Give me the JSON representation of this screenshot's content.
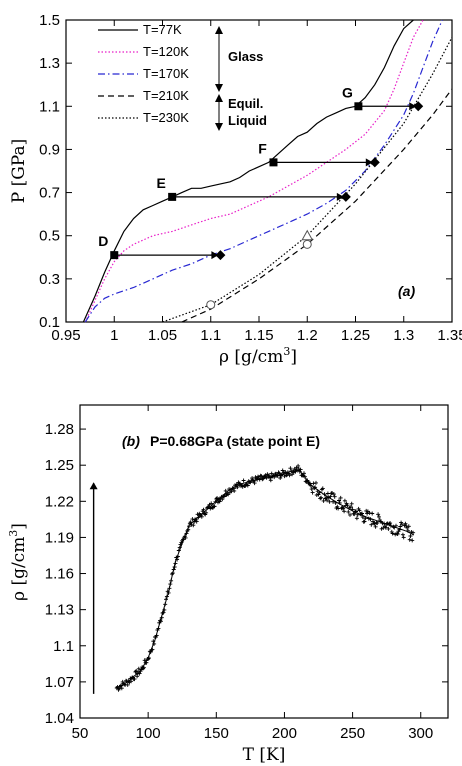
{
  "chart_data": [
    {
      "type": "line",
      "panel_label": "(a)",
      "xlabel_main": "ρ [g/cm",
      "xlabel_sup": "3",
      "xlabel_end": "]",
      "ylabel": "P [GPa]",
      "xlim": [
        0.95,
        1.35
      ],
      "ylim": [
        0.1,
        1.5
      ],
      "x_ticks": [
        "0.95",
        "1",
        "1.05",
        "1.1",
        "1.15",
        "1.2",
        "1.25",
        "1.3",
        "1.35"
      ],
      "x_tick_values": [
        0.95,
        1.0,
        1.05,
        1.1,
        1.15,
        1.2,
        1.25,
        1.3,
        1.35
      ],
      "y_ticks": [
        "0.1",
        "0.3",
        "0.5",
        "0.7",
        "0.9",
        "1.1",
        "1.3",
        "1.5"
      ],
      "y_tick_values": [
        0.1,
        0.3,
        0.5,
        0.7,
        0.9,
        1.1,
        1.3,
        1.5
      ],
      "legend": {
        "placement": "top-left",
        "group_glass": "Glass",
        "group_liquid_1": "Equil.",
        "group_liquid_2": "Liquid"
      },
      "series": [
        {
          "name": "T=77K",
          "color": "#000000",
          "dash": "solid",
          "x": [
            0.968,
            0.98,
            0.99,
            1.0,
            1.01,
            1.02,
            1.03,
            1.04,
            1.05,
            1.06,
            1.07,
            1.08,
            1.09,
            1.1,
            1.11,
            1.12,
            1.13,
            1.14,
            1.15,
            1.16,
            1.17,
            1.18,
            1.19,
            1.2,
            1.21,
            1.22,
            1.23,
            1.24,
            1.25,
            1.26,
            1.27,
            1.28,
            1.29,
            1.3,
            1.31
          ],
          "y": [
            0.1,
            0.22,
            0.33,
            0.43,
            0.52,
            0.58,
            0.62,
            0.64,
            0.66,
            0.68,
            0.7,
            0.72,
            0.72,
            0.73,
            0.74,
            0.75,
            0.77,
            0.8,
            0.82,
            0.84,
            0.88,
            0.92,
            0.96,
            0.98,
            1.02,
            1.05,
            1.07,
            1.09,
            1.1,
            1.14,
            1.2,
            1.28,
            1.38,
            1.46,
            1.5
          ]
        },
        {
          "name": "T=120K",
          "color": "#e81ec8",
          "dash": "dotted",
          "x": [
            0.97,
            0.98,
            0.99,
            1.0,
            1.01,
            1.02,
            1.04,
            1.06,
            1.08,
            1.1,
            1.12,
            1.14,
            1.16,
            1.18,
            1.2,
            1.22,
            1.24,
            1.26,
            1.28,
            1.29,
            1.3,
            1.31,
            1.32
          ],
          "y": [
            0.1,
            0.2,
            0.3,
            0.38,
            0.43,
            0.46,
            0.5,
            0.52,
            0.55,
            0.58,
            0.6,
            0.64,
            0.68,
            0.73,
            0.78,
            0.84,
            0.9,
            0.97,
            1.08,
            1.18,
            1.3,
            1.42,
            1.5
          ]
        },
        {
          "name": "T=170K",
          "color": "#2828d2",
          "dash": "dashdot",
          "x": [
            0.97,
            0.98,
            0.99,
            1.0,
            1.02,
            1.04,
            1.06,
            1.08,
            1.1,
            1.12,
            1.14,
            1.16,
            1.18,
            1.2,
            1.22,
            1.24,
            1.26,
            1.28,
            1.3,
            1.31,
            1.32,
            1.33,
            1.34
          ],
          "y": [
            0.1,
            0.17,
            0.21,
            0.23,
            0.26,
            0.3,
            0.34,
            0.37,
            0.41,
            0.44,
            0.48,
            0.52,
            0.56,
            0.6,
            0.65,
            0.71,
            0.8,
            0.92,
            1.06,
            1.16,
            1.28,
            1.4,
            1.5
          ]
        },
        {
          "name": "T=210K",
          "color": "#000000",
          "dash": "dashed",
          "x": [
            1.07,
            1.1,
            1.15,
            1.2,
            1.25,
            1.3,
            1.33,
            1.35
          ],
          "y": [
            0.1,
            0.16,
            0.3,
            0.46,
            0.66,
            0.9,
            1.06,
            1.18
          ]
        },
        {
          "name": "T=230K",
          "color": "#000000",
          "dash": "dotted",
          "x": [
            1.05,
            1.1,
            1.15,
            1.2,
            1.25,
            1.3,
            1.33,
            1.35
          ],
          "y": [
            0.1,
            0.18,
            0.32,
            0.5,
            0.74,
            1.02,
            1.25,
            1.42
          ]
        }
      ],
      "state_points": [
        {
          "label": "D",
          "x": 1.0,
          "y": 0.41,
          "x_end": 1.11
        },
        {
          "label": "E",
          "x": 1.06,
          "y": 0.68,
          "x_end": 1.24
        },
        {
          "label": "F",
          "x": 1.165,
          "y": 0.84,
          "x_end": 1.27
        },
        {
          "label": "G",
          "x": 1.253,
          "y": 1.1,
          "x_end": 1.315
        }
      ],
      "open_markers": [
        {
          "shape": "circle",
          "x": 1.1,
          "y": 0.18
        },
        {
          "shape": "circle",
          "x": 1.2,
          "y": 0.46
        },
        {
          "shape": "triangle",
          "x": 1.2,
          "y": 0.5
        }
      ]
    },
    {
      "type": "scatter",
      "panel_label": "(b)",
      "title": "P=0.68GPa (state point E)",
      "xlabel": "T [K]",
      "ylabel_main": "ρ [g/cm",
      "ylabel_sup": "3",
      "ylabel_end": "]",
      "xlim": [
        50,
        320
      ],
      "ylim": [
        1.04,
        1.3
      ],
      "x_ticks": [
        "50",
        "100",
        "150",
        "200",
        "250",
        "300"
      ],
      "x_tick_values": [
        50,
        100,
        150,
        200,
        250,
        300
      ],
      "y_ticks": [
        "1.04",
        "1.07",
        "1.1",
        "1.13",
        "1.16",
        "1.19",
        "1.22",
        "1.25",
        "1.28"
      ],
      "y_tick_values": [
        1.04,
        1.07,
        1.1,
        1.13,
        1.16,
        1.19,
        1.22,
        1.25,
        1.28
      ],
      "arrow": {
        "x": 60,
        "y_from": 1.06,
        "y_to": 1.235
      },
      "series": [
        {
          "name": "",
          "color": "#000000",
          "x": [
            77,
            85,
            95,
            100,
            105,
            110,
            115,
            120,
            125,
            130,
            140,
            150,
            160,
            170,
            180,
            190,
            200,
            205,
            210,
            215,
            220,
            230,
            240,
            250,
            260,
            270,
            280,
            290,
            295
          ],
          "y": [
            1.065,
            1.07,
            1.08,
            1.09,
            1.105,
            1.125,
            1.145,
            1.17,
            1.185,
            1.2,
            1.21,
            1.22,
            1.23,
            1.235,
            1.238,
            1.24,
            1.243,
            1.245,
            1.247,
            1.24,
            1.233,
            1.225,
            1.218,
            1.212,
            1.207,
            1.203,
            1.199,
            1.195,
            1.192
          ]
        }
      ]
    }
  ]
}
